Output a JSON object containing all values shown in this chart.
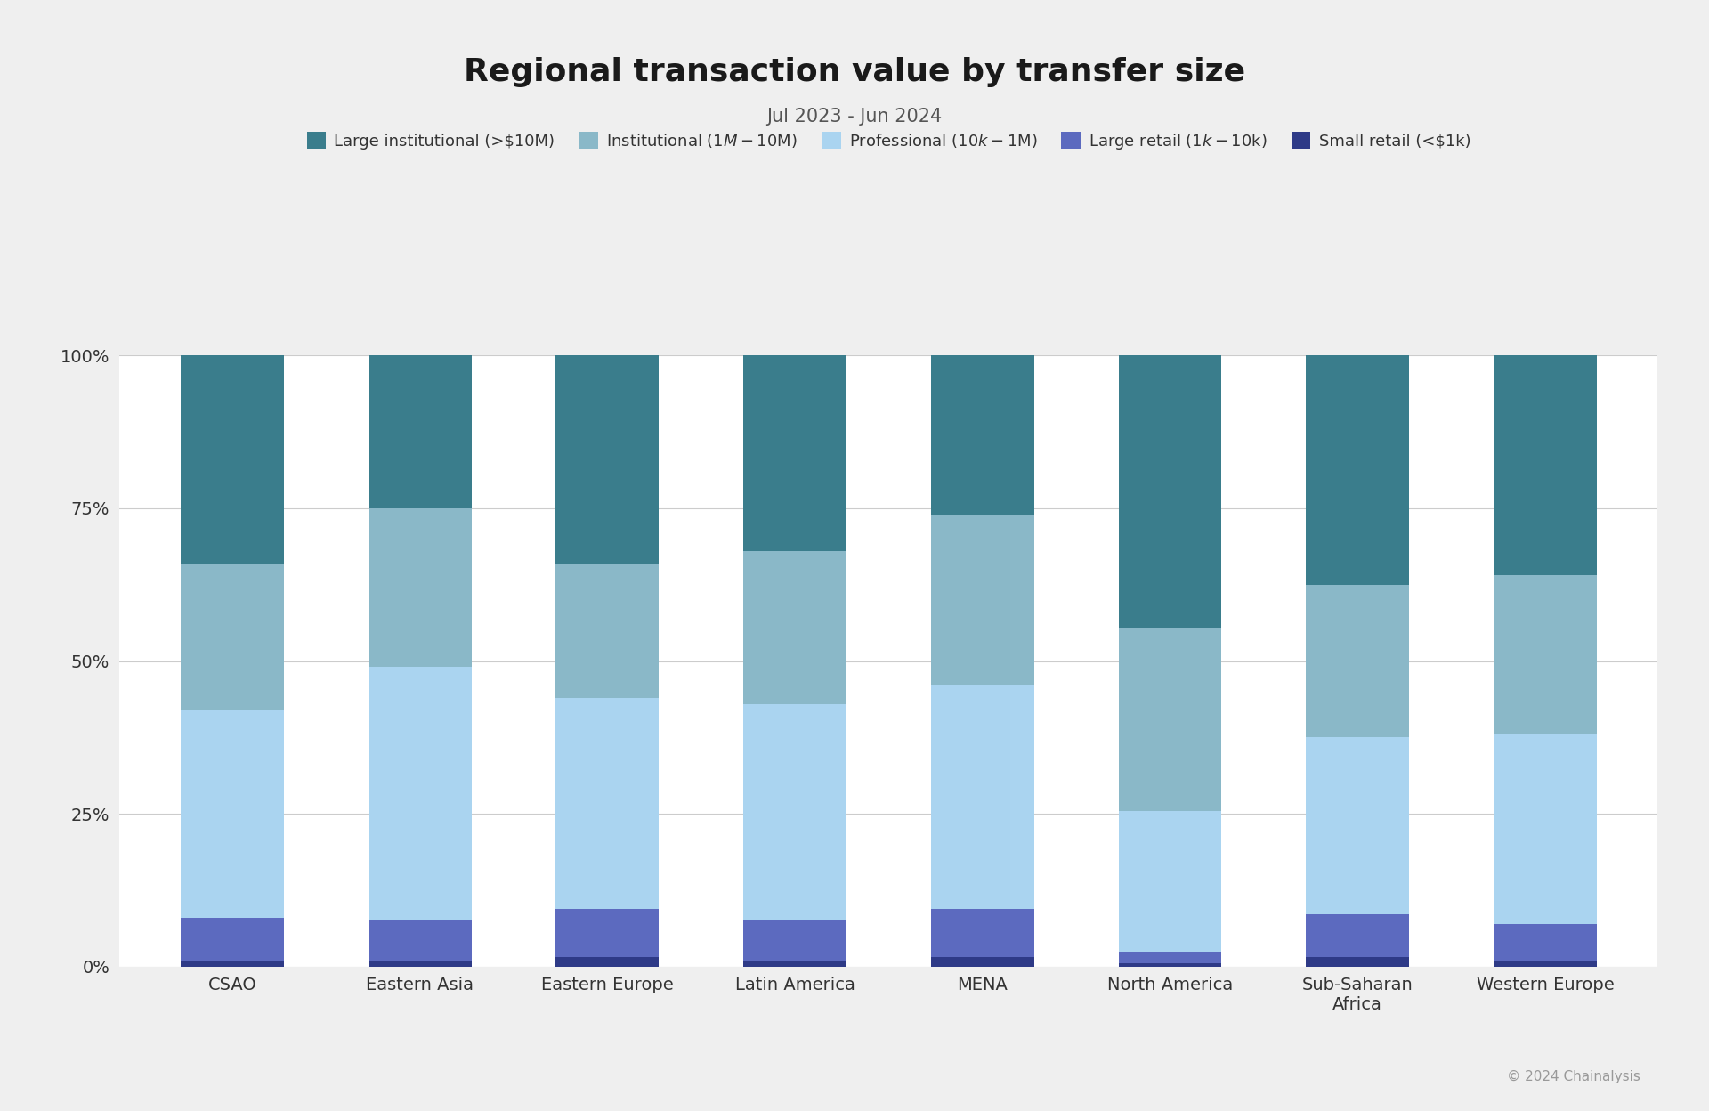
{
  "title": "Regional transaction value by transfer size",
  "subtitle": "Jul 2023 - Jun 2024",
  "categories": [
    "CSAO",
    "Eastern Asia",
    "Eastern Europe",
    "Latin America",
    "MENA",
    "North America",
    "Sub-Saharan\nAfrica",
    "Western Europe"
  ],
  "segments": {
    "Small retail (<$1k)": {
      "values": [
        1.0,
        1.0,
        1.5,
        1.0,
        1.5,
        0.5,
        1.5,
        1.0
      ],
      "color": "#2e3a87"
    },
    "Large retail ($1k-$10k)": {
      "values": [
        7.0,
        6.5,
        8.0,
        6.5,
        8.0,
        2.0,
        7.0,
        6.0
      ],
      "color": "#5c6abf"
    },
    "Professional ($10k-$1M)": {
      "values": [
        34.0,
        41.5,
        34.5,
        35.5,
        36.5,
        23.0,
        29.0,
        31.0
      ],
      "color": "#aad4f0"
    },
    "Institutional ($1M-$10M)": {
      "values": [
        24.0,
        26.0,
        22.0,
        25.0,
        28.0,
        30.0,
        25.0,
        26.0
      ],
      "color": "#8ab8c8"
    },
    "Large institutional (>$10M)": {
      "values": [
        34.0,
        25.0,
        34.0,
        32.0,
        26.0,
        44.5,
        37.5,
        36.0
      ],
      "color": "#3a7d8c"
    }
  },
  "background_color": "#efefef",
  "plot_background": "#ffffff",
  "ytick_labels": [
    "0%",
    "25%",
    "50%",
    "75%",
    "100%"
  ],
  "ytick_values": [
    0,
    25,
    50,
    75,
    100
  ],
  "title_fontsize": 26,
  "subtitle_fontsize": 15,
  "legend_fontsize": 13,
  "tick_fontsize": 14,
  "copyright_text": "© 2024 Chainalysis"
}
